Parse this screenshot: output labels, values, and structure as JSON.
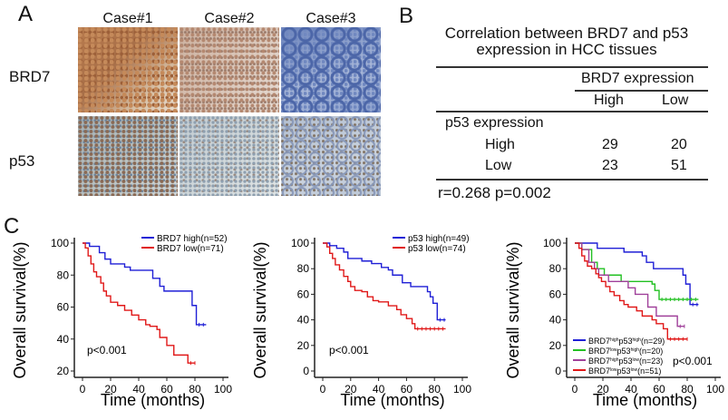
{
  "panel_a": {
    "label": "A",
    "columns": [
      "Case#1",
      "Case#2",
      "Case#3"
    ],
    "rows": [
      "BRD7",
      "p53"
    ]
  },
  "panel_b": {
    "label": "B",
    "title_line1": "Correlation between BRD7  and p53",
    "title_line2": "expression in HCC tissues",
    "col_group": "BRD7  expression",
    "col_headers": [
      "High",
      "Low"
    ],
    "row_group": "p53  expression",
    "rows": [
      {
        "label": "High",
        "values": [
          "29",
          "20"
        ]
      },
      {
        "label": "Low",
        "values": [
          "23",
          "51"
        ]
      }
    ],
    "stat": "r=0.268  p=0.002"
  },
  "panel_c": {
    "label": "C"
  },
  "chart_data": [
    {
      "type": "line",
      "xlabel": "Time (months)",
      "ylabel": "Overall survival(%)",
      "xlim": [
        0,
        100
      ],
      "ylim": [
        20,
        100
      ],
      "xticks": [
        "0",
        "20",
        "40",
        "60",
        "80",
        "100"
      ],
      "yticks": [
        "20",
        "40",
        "60",
        "80",
        "100"
      ],
      "annotation": "p<0.001",
      "legend_position": "top-right",
      "series": [
        {
          "name": "BRD7 high(n=52)",
          "color": "#1f1fd6",
          "points": [
            [
              0,
              100
            ],
            [
              5,
              98
            ],
            [
              12,
              94
            ],
            [
              16,
              90
            ],
            [
              20,
              87
            ],
            [
              30,
              85
            ],
            [
              34,
              83
            ],
            [
              50,
              78
            ],
            [
              55,
              73
            ],
            [
              58,
              70
            ],
            [
              78,
              61
            ],
            [
              81,
              49
            ],
            [
              88,
              49
            ]
          ]
        },
        {
          "name": "BRD7 low(n=71)",
          "color": "#e01818",
          "points": [
            [
              0,
              100
            ],
            [
              2,
              97
            ],
            [
              4,
              92
            ],
            [
              6,
              87
            ],
            [
              8,
              82
            ],
            [
              10,
              79
            ],
            [
              13,
              75
            ],
            [
              15,
              70
            ],
            [
              17,
              67
            ],
            [
              20,
              63
            ],
            [
              25,
              61
            ],
            [
              30,
              58
            ],
            [
              35,
              55
            ],
            [
              40,
              52
            ],
            [
              45,
              49
            ],
            [
              48,
              48
            ],
            [
              53,
              46
            ],
            [
              55,
              41
            ],
            [
              60,
              36
            ],
            [
              65,
              30
            ],
            [
              75,
              25
            ],
            [
              80,
              25
            ]
          ]
        }
      ]
    },
    {
      "type": "line",
      "xlabel": "Time (months)",
      "ylabel": "Overall survival(%)",
      "xlim": [
        0,
        100
      ],
      "ylim": [
        0,
        100
      ],
      "xticks": [
        "0",
        "20",
        "40",
        "60",
        "80",
        "100"
      ],
      "yticks": [
        "0",
        "20",
        "40",
        "60",
        "80",
        "100"
      ],
      "annotation": "p<0.001",
      "legend_position": "top-right",
      "series": [
        {
          "name": "p53 high(n=49)",
          "color": "#1f1fd6",
          "points": [
            [
              0,
              100
            ],
            [
              5,
              98
            ],
            [
              10,
              96
            ],
            [
              15,
              93
            ],
            [
              18,
              88
            ],
            [
              28,
              86
            ],
            [
              35,
              84
            ],
            [
              42,
              81
            ],
            [
              47,
              79
            ],
            [
              50,
              75
            ],
            [
              57,
              69
            ],
            [
              63,
              66
            ],
            [
              75,
              62
            ],
            [
              77,
              58
            ],
            [
              79,
              53
            ],
            [
              82,
              40
            ],
            [
              88,
              40
            ]
          ]
        },
        {
          "name": "p53 low(n=74)",
          "color": "#e01818",
          "points": [
            [
              0,
              100
            ],
            [
              3,
              97
            ],
            [
              5,
              92
            ],
            [
              7,
              88
            ],
            [
              9,
              83
            ],
            [
              12,
              79
            ],
            [
              15,
              74
            ],
            [
              18,
              70
            ],
            [
              20,
              66
            ],
            [
              23,
              63
            ],
            [
              28,
              62
            ],
            [
              32,
              58
            ],
            [
              36,
              55
            ],
            [
              40,
              54
            ],
            [
              47,
              51
            ],
            [
              53,
              48
            ],
            [
              56,
              44
            ],
            [
              60,
              41
            ],
            [
              64,
              37
            ],
            [
              66,
              33
            ],
            [
              88,
              33
            ]
          ]
        }
      ]
    },
    {
      "type": "line",
      "xlabel": "Time (months)",
      "ylabel": "Overall survival(%)",
      "xlim": [
        0,
        100
      ],
      "ylim": [
        0,
        100
      ],
      "xticks": [
        "0",
        "20",
        "40",
        "60",
        "80",
        "100"
      ],
      "yticks": [
        "0",
        "20",
        "40",
        "60",
        "80",
        "100"
      ],
      "annotation": "p<0.001",
      "legend_position": "bottom-left",
      "series": [
        {
          "name": "BRD7highp53high(n=29)",
          "label_parts": [
            "BRD7",
            "high",
            "p53",
            "high",
            "(n=29)"
          ],
          "color": "#1f1fd6",
          "points": [
            [
              0,
              100
            ],
            [
              16,
              96
            ],
            [
              35,
              93
            ],
            [
              48,
              90
            ],
            [
              51,
              85
            ],
            [
              56,
              80
            ],
            [
              77,
              75
            ],
            [
              79,
              68
            ],
            [
              82,
              52
            ],
            [
              88,
              52
            ]
          ]
        },
        {
          "name": "BRD7lowp53high(n=20)",
          "label_parts": [
            "BRD7",
            "low",
            "p53",
            "high",
            "(n=20)"
          ],
          "color": "#22c022",
          "points": [
            [
              0,
              100
            ],
            [
              5,
              95
            ],
            [
              12,
              85
            ],
            [
              16,
              80
            ],
            [
              21,
              75
            ],
            [
              33,
              70
            ],
            [
              55,
              68
            ],
            [
              57,
              63
            ],
            [
              60,
              56
            ],
            [
              88,
              56
            ]
          ]
        },
        {
          "name": "BRD7highp53low(n=23)",
          "label_parts": [
            "BRD7",
            "high",
            "p53",
            "low",
            "(n=23)"
          ],
          "color": "#a0409a",
          "points": [
            [
              0,
              100
            ],
            [
              5,
              95
            ],
            [
              10,
              85
            ],
            [
              14,
              80
            ],
            [
              17,
              75
            ],
            [
              24,
              70
            ],
            [
              38,
              65
            ],
            [
              43,
              60
            ],
            [
              52,
              50
            ],
            [
              58,
              43
            ],
            [
              73,
              35
            ],
            [
              78,
              35
            ]
          ]
        },
        {
          "name": "BRD7lowp53low(n=51)",
          "label_parts": [
            "BRD7",
            "low",
            "p53",
            "low",
            "(n=51)"
          ],
          "color": "#e01818",
          "points": [
            [
              0,
              100
            ],
            [
              3,
              96
            ],
            [
              5,
              90
            ],
            [
              7,
              86
            ],
            [
              9,
              82
            ],
            [
              12,
              80
            ],
            [
              15,
              76
            ],
            [
              17,
              73
            ],
            [
              19,
              70
            ],
            [
              22,
              66
            ],
            [
              25,
              62
            ],
            [
              28,
              59
            ],
            [
              32,
              55
            ],
            [
              35,
              52
            ],
            [
              38,
              50
            ],
            [
              44,
              47
            ],
            [
              48,
              43
            ],
            [
              55,
              40
            ],
            [
              58,
              37
            ],
            [
              63,
              33
            ],
            [
              66,
              25
            ],
            [
              80,
              25
            ]
          ]
        }
      ]
    }
  ]
}
